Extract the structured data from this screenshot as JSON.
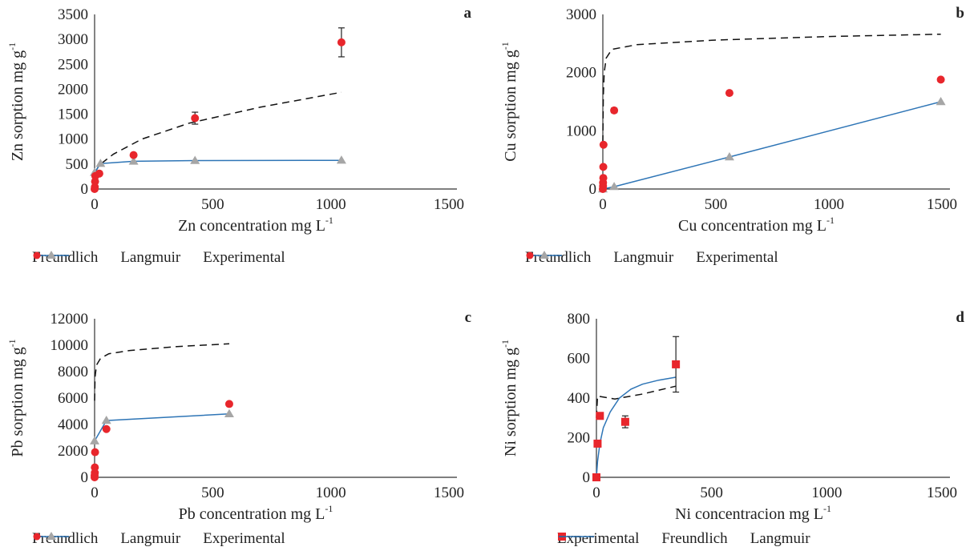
{
  "colors": {
    "experimental": "#e8262c",
    "langmuir": "#2e75b6",
    "langmuir_marker": "#a6a6a6",
    "freundlich": "#111111",
    "axis": "#333333"
  },
  "chart_data": [
    {
      "id": "a",
      "type": "scatter",
      "panel_label": "a",
      "xlabel": "Zn concentration mg L",
      "xlabel_sup": "-1",
      "ylabel": "Zn sorption mg g",
      "ylabel_sup": "-1",
      "xlim": [
        0,
        1500
      ],
      "ylim": [
        0,
        3500
      ],
      "xticks": [
        0,
        500,
        1000,
        1500
      ],
      "yticks": [
        0,
        500,
        1000,
        1500,
        2000,
        2500,
        3000,
        3500
      ],
      "legend": [
        "Freundlich",
        "Langmuir",
        "Experimental"
      ],
      "legend_order": [
        "freundlich",
        "langmuir",
        "experimental"
      ],
      "experimental_marker": "circle",
      "experimental": [
        {
          "x": 0,
          "y": 0,
          "err": 40
        },
        {
          "x": 1,
          "y": 40,
          "err": 0
        },
        {
          "x": 2,
          "y": 150,
          "err": 0
        },
        {
          "x": 3,
          "y": 260,
          "err": 0
        },
        {
          "x": 20,
          "y": 310,
          "err": 0
        },
        {
          "x": 165,
          "y": 680,
          "err": 0
        },
        {
          "x": 425,
          "y": 1420,
          "err": 120
        },
        {
          "x": 1045,
          "y": 2940,
          "err": 290
        }
      ],
      "langmuir": [
        {
          "x": 0,
          "y": 330
        },
        {
          "x": 25,
          "y": 510
        },
        {
          "x": 165,
          "y": 555
        },
        {
          "x": 425,
          "y": 570
        },
        {
          "x": 1045,
          "y": 575
        }
      ],
      "freundlich": [
        {
          "x": 0,
          "y": 320
        },
        {
          "x": 20,
          "y": 480
        },
        {
          "x": 80,
          "y": 700
        },
        {
          "x": 200,
          "y": 1000
        },
        {
          "x": 400,
          "y": 1320
        },
        {
          "x": 700,
          "y": 1640
        },
        {
          "x": 1045,
          "y": 1940
        }
      ],
      "fit_curve": null
    },
    {
      "id": "b",
      "type": "scatter",
      "panel_label": "b",
      "xlabel": "Cu concentration mg L",
      "xlabel_sup": "-1",
      "ylabel": "Cu sorption mg g",
      "ylabel_sup": "-1",
      "xlim": [
        0,
        1500
      ],
      "ylim": [
        0,
        3000
      ],
      "xticks": [
        0,
        500,
        1000,
        1500
      ],
      "yticks": [
        0,
        1000,
        2000,
        3000
      ],
      "legend": [
        "Freundlich",
        "Langmuir",
        "Experimental"
      ],
      "legend_order": [
        "freundlich",
        "langmuir",
        "experimental"
      ],
      "experimental_marker": "circle",
      "experimental": [
        {
          "x": 0,
          "y": 0,
          "err": 0
        },
        {
          "x": 1,
          "y": 50,
          "err": 0
        },
        {
          "x": 1,
          "y": 110,
          "err": 0
        },
        {
          "x": 2,
          "y": 190,
          "err": 0
        },
        {
          "x": 2,
          "y": 380,
          "err": 0
        },
        {
          "x": 3,
          "y": 760,
          "err": 0
        },
        {
          "x": 50,
          "y": 1350,
          "err": 40
        },
        {
          "x": 560,
          "y": 1650,
          "err": 0
        },
        {
          "x": 1495,
          "y": 1880,
          "err": 0
        }
      ],
      "langmuir": [
        {
          "x": 0,
          "y": 0
        },
        {
          "x": 50,
          "y": 40
        },
        {
          "x": 560,
          "y": 550
        },
        {
          "x": 1495,
          "y": 1500
        }
      ],
      "freundlich": [
        {
          "x": 0,
          "y": 800
        },
        {
          "x": 2,
          "y": 1600
        },
        {
          "x": 6,
          "y": 2000
        },
        {
          "x": 15,
          "y": 2250
        },
        {
          "x": 40,
          "y": 2400
        },
        {
          "x": 150,
          "y": 2480
        },
        {
          "x": 500,
          "y": 2560
        },
        {
          "x": 1000,
          "y": 2620
        },
        {
          "x": 1495,
          "y": 2660
        }
      ],
      "fit_curve": null
    },
    {
      "id": "c",
      "type": "scatter",
      "panel_label": "c",
      "xlabel": "Pb concentration mg L",
      "xlabel_sup": "-1",
      "ylabel": "Pb sorption mg g",
      "ylabel_sup": "-1",
      "xlim": [
        0,
        1500
      ],
      "ylim": [
        0,
        12000
      ],
      "xticks": [
        0,
        500,
        1000,
        1500
      ],
      "yticks": [
        0,
        2000,
        4000,
        6000,
        8000,
        10000,
        12000
      ],
      "legend": [
        "Freundlich",
        "Langmuir",
        "Experimental"
      ],
      "legend_order": [
        "freundlich",
        "langmuir",
        "experimental"
      ],
      "experimental_marker": "circle",
      "experimental": [
        {
          "x": 0,
          "y": 0,
          "err": 0
        },
        {
          "x": 0,
          "y": 150,
          "err": 0
        },
        {
          "x": 1,
          "y": 350,
          "err": 0
        },
        {
          "x": 1,
          "y": 750,
          "err": 0
        },
        {
          "x": 2,
          "y": 1900,
          "err": 0
        },
        {
          "x": 50,
          "y": 3650,
          "err": 0
        },
        {
          "x": 570,
          "y": 5550,
          "err": 0
        }
      ],
      "langmuir": [
        {
          "x": 0,
          "y": 2750
        },
        {
          "x": 50,
          "y": 4300
        },
        {
          "x": 570,
          "y": 4800
        }
      ],
      "freundlich": [
        {
          "x": 0,
          "y": 5800
        },
        {
          "x": 2,
          "y": 7600
        },
        {
          "x": 8,
          "y": 8500
        },
        {
          "x": 25,
          "y": 9000
        },
        {
          "x": 60,
          "y": 9350
        },
        {
          "x": 150,
          "y": 9600
        },
        {
          "x": 350,
          "y": 9900
        },
        {
          "x": 570,
          "y": 10100
        }
      ],
      "fit_curve": null
    },
    {
      "id": "d",
      "type": "scatter",
      "panel_label": "d",
      "xlabel": "Ni concentracion mg L",
      "xlabel_sup": "-1",
      "ylabel": "Ni sorption  mg g",
      "ylabel_sup": "-1",
      "xlim": [
        0,
        1500
      ],
      "ylim": [
        0,
        800
      ],
      "xticks": [
        0,
        500,
        1000,
        1500
      ],
      "yticks": [
        0,
        200,
        400,
        600,
        800
      ],
      "legend": [
        "Experimental",
        "Freundlich",
        "Langmuir"
      ],
      "legend_order": [
        "experimental",
        "freundlich",
        "langmuir"
      ],
      "experimental_marker": "square",
      "experimental": [
        {
          "x": 0,
          "y": 0,
          "err": 0
        },
        {
          "x": 5,
          "y": 170,
          "err": 0
        },
        {
          "x": 15,
          "y": 310,
          "err": 15
        },
        {
          "x": 125,
          "y": 280,
          "err": 30
        },
        {
          "x": 345,
          "y": 570,
          "err": 140
        }
      ],
      "langmuir": null,
      "freundlich": [
        {
          "x": 0,
          "y": 300
        },
        {
          "x": 5,
          "y": 410
        },
        {
          "x": 80,
          "y": 395
        },
        {
          "x": 200,
          "y": 420
        },
        {
          "x": 345,
          "y": 460
        }
      ],
      "fit_curve": [
        {
          "x": 0,
          "y": 0
        },
        {
          "x": 5,
          "y": 80
        },
        {
          "x": 15,
          "y": 170
        },
        {
          "x": 30,
          "y": 250
        },
        {
          "x": 60,
          "y": 330
        },
        {
          "x": 100,
          "y": 400
        },
        {
          "x": 150,
          "y": 445
        },
        {
          "x": 200,
          "y": 470
        },
        {
          "x": 270,
          "y": 490
        },
        {
          "x": 345,
          "y": 505
        }
      ]
    }
  ]
}
